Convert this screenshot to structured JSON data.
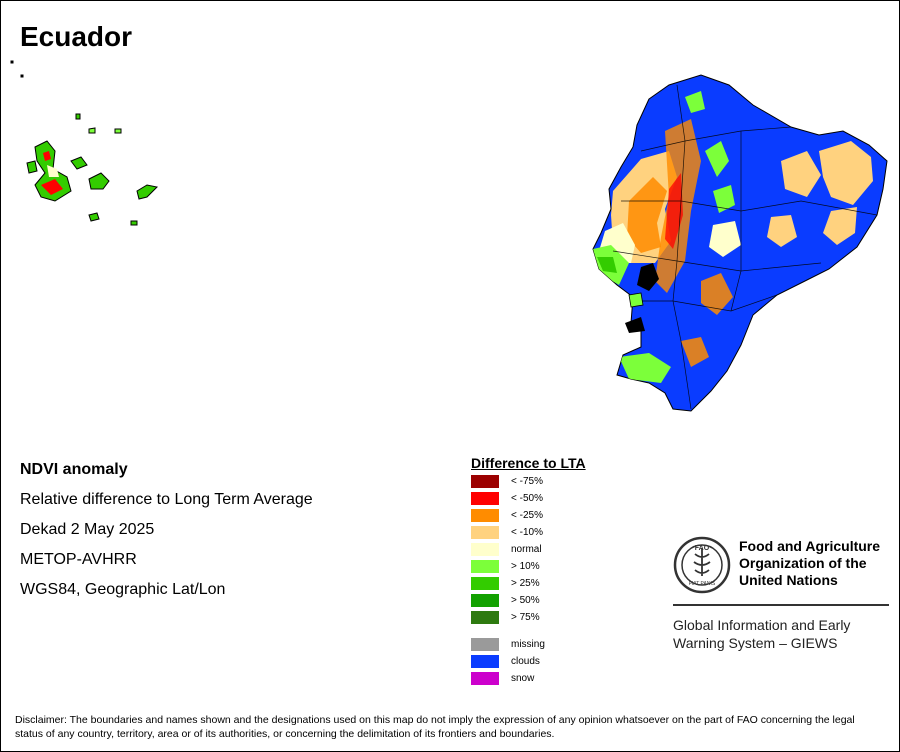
{
  "map": {
    "title": "Ecuador",
    "info": {
      "product": "NDVI anomaly",
      "description": "Relative difference to Long Term Average",
      "period": "Dekad 2 May 2025",
      "sensor": "METOP-AVHRR",
      "projection": "WGS84, Geographic Lat/Lon"
    },
    "legend": {
      "title": "Difference to LTA",
      "classes": [
        {
          "label": "< -75%",
          "color": "#9c0000"
        },
        {
          "label": "< -50%",
          "color": "#ff0000"
        },
        {
          "label": "< -25%",
          "color": "#ff8c00"
        },
        {
          "label": "< -10%",
          "color": "#ffd27f"
        },
        {
          "label": "normal",
          "color": "#ffffcc"
        },
        {
          "label": "> 10%",
          "color": "#7cff3a"
        },
        {
          "label": "> 25%",
          "color": "#33cc00"
        },
        {
          "label": "> 50%",
          "color": "#12a100"
        },
        {
          "label": "> 75%",
          "color": "#2e7a10"
        }
      ],
      "extra": [
        {
          "label": "missing",
          "color": "#9a9a9a"
        },
        {
          "label": "clouds",
          "color": "#0a3cff"
        },
        {
          "label": "snow",
          "color": "#cc00cc"
        }
      ]
    },
    "org": {
      "name_line1": "Food and Agriculture",
      "name_line2": "Organization of the",
      "name_line3": "United Nations",
      "logo_text": "FAO",
      "motto": "FIAT PANIS",
      "system_line1": "Global Information and Early",
      "system_line2": "Warning System – GIEWS"
    },
    "disclaimer": "Disclaimer: The boundaries and names shown and the designations used on this map do not imply the expression of any opinion whatsoever on the part of FAO concerning the legal status of any country, territory, area or of its authorities, or concerning the delimitation of its frontiers and boundaries."
  }
}
